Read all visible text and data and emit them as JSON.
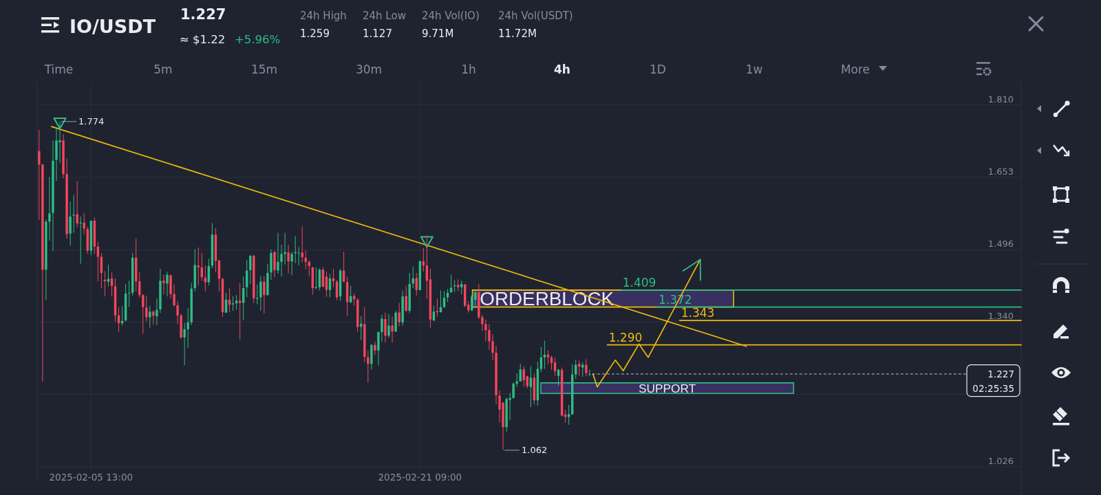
{
  "chart_data": {
    "type": "candlestick",
    "title": "IO/USDT",
    "subtitle": "1.227",
    "annotations": [
      "≈ $1.22",
      "+5.96%",
      "24h High",
      "1.259",
      "24h Low",
      "1.127",
      "24h Vol(IO)",
      "9.71M",
      "24h Vol(USDT)",
      "11.72M",
      "Time",
      "5m",
      "15m",
      "30m",
      "1h",
      "4h",
      "1D",
      "1w",
      "More",
      "02:25:35",
      {
        "text": "1.774",
        "x": "2025-02-04T01:00",
        "y": 1.774
      },
      {
        "text": "1.062",
        "x": "2025-02-25T09:00",
        "y": 1.062
      }
    ],
    "x": [
      "2025-02-03T01:00",
      "2025-02-03T05:00",
      "2025-02-03T09:00",
      "2025-02-03T13:00",
      "2025-02-03T17:00",
      "2025-02-03T21:00",
      "2025-02-04T01:00",
      "2025-02-04T05:00",
      "2025-02-04T09:00",
      "2025-02-04T13:00",
      "2025-02-04T17:00",
      "2025-02-04T21:00",
      "2025-02-05T01:00",
      "2025-02-05T05:00",
      "2025-02-05T09:00",
      "2025-02-05T13:00",
      "2025-02-05T17:00",
      "2025-02-05T21:00",
      "2025-02-06T01:00",
      "2025-02-06T05:00",
      "2025-02-06T09:00",
      "2025-02-06T13:00",
      "2025-02-06T17:00",
      "2025-02-06T21:00",
      "2025-02-07T01:00",
      "2025-02-07T05:00",
      "2025-02-07T09:00",
      "2025-02-07T13:00",
      "2025-02-07T17:00",
      "2025-02-07T21:00",
      "2025-02-08T01:00",
      "2025-02-08T05:00",
      "2025-02-08T09:00",
      "2025-02-08T13:00",
      "2025-02-08T17:00",
      "2025-02-08T21:00",
      "2025-02-09T01:00",
      "2025-02-09T05:00",
      "2025-02-09T09:00",
      "2025-02-09T13:00",
      "2025-02-09T17:00",
      "2025-02-09T21:00",
      "2025-02-10T01:00",
      "2025-02-10T05:00",
      "2025-02-10T09:00",
      "2025-02-10T13:00",
      "2025-02-10T17:00",
      "2025-02-10T21:00",
      "2025-02-11T01:00",
      "2025-02-11T05:00",
      "2025-02-11T09:00",
      "2025-02-11T13:00",
      "2025-02-11T17:00",
      "2025-02-11T21:00",
      "2025-02-12T01:00",
      "2025-02-12T05:00",
      "2025-02-12T09:00",
      "2025-02-12T13:00",
      "2025-02-12T17:00",
      "2025-02-12T21:00",
      "2025-02-13T01:00",
      "2025-02-13T05:00",
      "2025-02-13T09:00",
      "2025-02-13T13:00",
      "2025-02-13T17:00",
      "2025-02-13T21:00",
      "2025-02-14T01:00",
      "2025-02-14T05:00",
      "2025-02-14T09:00",
      "2025-02-14T13:00",
      "2025-02-14T17:00",
      "2025-02-14T21:00",
      "2025-02-15T01:00",
      "2025-02-15T05:00",
      "2025-02-15T09:00",
      "2025-02-15T13:00",
      "2025-02-15T17:00",
      "2025-02-15T21:00",
      "2025-02-16T01:00",
      "2025-02-16T05:00",
      "2025-02-16T09:00",
      "2025-02-16T13:00",
      "2025-02-16T17:00",
      "2025-02-16T21:00",
      "2025-02-17T01:00",
      "2025-02-17T05:00",
      "2025-02-17T09:00",
      "2025-02-17T13:00",
      "2025-02-17T17:00",
      "2025-02-17T21:00",
      "2025-02-18T01:00",
      "2025-02-18T05:00",
      "2025-02-18T09:00",
      "2025-02-18T13:00",
      "2025-02-18T17:00",
      "2025-02-18T21:00",
      "2025-02-19T01:00",
      "2025-02-19T05:00",
      "2025-02-19T09:00",
      "2025-02-19T13:00",
      "2025-02-19T17:00",
      "2025-02-19T21:00",
      "2025-02-20T01:00",
      "2025-02-20T05:00",
      "2025-02-20T09:00",
      "2025-02-20T13:00",
      "2025-02-20T17:00",
      "2025-02-20T21:00",
      "2025-02-21T01:00",
      "2025-02-21T05:00",
      "2025-02-21T09:00",
      "2025-02-21T13:00",
      "2025-02-21T17:00",
      "2025-02-21T21:00",
      "2025-02-22T01:00",
      "2025-02-22T05:00",
      "2025-02-22T09:00",
      "2025-02-22T13:00",
      "2025-02-22T17:00",
      "2025-02-22T21:00",
      "2025-02-23T01:00",
      "2025-02-23T05:00",
      "2025-02-23T09:00",
      "2025-02-23T13:00",
      "2025-02-23T17:00",
      "2025-02-23T21:00",
      "2025-02-24T01:00",
      "2025-02-24T05:00",
      "2025-02-24T09:00",
      "2025-02-24T13:00",
      "2025-02-24T17:00",
      "2025-02-24T21:00",
      "2025-02-25T01:00",
      "2025-02-25T05:00",
      "2025-02-25T09:00",
      "2025-02-25T13:00",
      "2025-02-25T17:00",
      "2025-02-25T21:00",
      "2025-02-26T01:00",
      "2025-02-26T05:00",
      "2025-02-26T09:00",
      "2025-02-26T13:00",
      "2025-02-26T17:00",
      "2025-02-26T21:00",
      "2025-02-27T01:00",
      "2025-02-27T05:00",
      "2025-02-27T09:00",
      "2025-02-27T13:00",
      "2025-02-27T17:00",
      "2025-02-27T21:00",
      "2025-02-28T01:00",
      "2025-02-28T05:00",
      "2025-02-28T09:00",
      "2025-02-28T13:00",
      "2025-02-28T17:00",
      "2025-02-28T21:00",
      "2025-03-01T01:00",
      "2025-03-01T05:00",
      "2025-03-01T09:00",
      "2025-03-01T13:00"
    ],
    "ohlc": [
      [
        1.71,
        1.756,
        1.561,
        1.681
      ],
      [
        1.681,
        1.682,
        1.211,
        1.453
      ],
      [
        1.453,
        1.562,
        1.387,
        1.557
      ],
      [
        1.557,
        1.654,
        1.516,
        1.575
      ],
      [
        1.576,
        1.733,
        1.493,
        1.689
      ],
      [
        1.691,
        1.762,
        1.645,
        1.733
      ],
      [
        1.729,
        1.774,
        1.684,
        1.733
      ],
      [
        1.733,
        1.747,
        1.651,
        1.66
      ],
      [
        1.66,
        1.694,
        1.52,
        1.53
      ],
      [
        1.531,
        1.6,
        1.505,
        1.568
      ],
      [
        1.57,
        1.615,
        1.533,
        1.572
      ],
      [
        1.573,
        1.645,
        1.545,
        1.553
      ],
      [
        1.553,
        1.568,
        1.466,
        1.555
      ],
      [
        1.555,
        1.575,
        1.53,
        1.542
      ],
      [
        1.541,
        1.546,
        1.487,
        1.494
      ],
      [
        1.494,
        1.559,
        1.484,
        1.559
      ],
      [
        1.559,
        1.566,
        1.487,
        1.503
      ],
      [
        1.503,
        1.514,
        1.428,
        1.481
      ],
      [
        1.481,
        1.489,
        1.413,
        1.446
      ],
      [
        1.431,
        1.45,
        1.396,
        1.428
      ],
      [
        1.427,
        1.464,
        1.417,
        1.433
      ],
      [
        1.434,
        1.447,
        1.395,
        1.418
      ],
      [
        1.417,
        1.434,
        1.34,
        1.354
      ],
      [
        1.354,
        1.372,
        1.318,
        1.337
      ],
      [
        1.337,
        1.374,
        1.332,
        1.342
      ],
      [
        1.343,
        1.422,
        1.341,
        1.401
      ],
      [
        1.402,
        1.429,
        1.372,
        1.403
      ],
      [
        1.403,
        1.489,
        1.397,
        1.479
      ],
      [
        1.479,
        1.52,
        1.406,
        1.428
      ],
      [
        1.428,
        1.447,
        1.393,
        1.398
      ],
      [
        1.398,
        1.4,
        1.314,
        1.372
      ],
      [
        1.371,
        1.396,
        1.341,
        1.35
      ],
      [
        1.35,
        1.375,
        1.327,
        1.362
      ],
      [
        1.362,
        1.365,
        1.334,
        1.353
      ],
      [
        1.352,
        1.391,
        1.333,
        1.366
      ],
      [
        1.367,
        1.455,
        1.359,
        1.429
      ],
      [
        1.429,
        1.442,
        1.399,
        1.424
      ],
      [
        1.423,
        1.448,
        1.395,
        1.442
      ],
      [
        1.441,
        1.442,
        1.391,
        1.4
      ],
      [
        1.4,
        1.421,
        1.373,
        1.376
      ],
      [
        1.376,
        1.385,
        1.335,
        1.354
      ],
      [
        1.354,
        1.357,
        1.304,
        1.306
      ],
      [
        1.306,
        1.338,
        1.246,
        1.324
      ],
      [
        1.324,
        1.37,
        1.284,
        1.339
      ],
      [
        1.339,
        1.424,
        1.333,
        1.412
      ],
      [
        1.413,
        1.497,
        1.406,
        1.463
      ],
      [
        1.462,
        1.501,
        1.419,
        1.458
      ],
      [
        1.458,
        1.489,
        1.429,
        1.437
      ],
      [
        1.436,
        1.462,
        1.406,
        1.426
      ],
      [
        1.426,
        1.477,
        1.419,
        1.461
      ],
      [
        1.462,
        1.554,
        1.456,
        1.529
      ],
      [
        1.529,
        1.543,
        1.447,
        1.472
      ],
      [
        1.473,
        1.474,
        1.406,
        1.433
      ],
      [
        1.433,
        1.436,
        1.351,
        1.361
      ],
      [
        1.36,
        1.403,
        1.359,
        1.388
      ],
      [
        1.388,
        1.413,
        1.361,
        1.377
      ],
      [
        1.378,
        1.396,
        1.364,
        1.38
      ],
      [
        1.38,
        1.398,
        1.366,
        1.386
      ],
      [
        1.386,
        1.424,
        1.302,
        1.381
      ],
      [
        1.381,
        1.438,
        1.344,
        1.413
      ],
      [
        1.415,
        1.474,
        1.393,
        1.451
      ],
      [
        1.452,
        1.485,
        1.422,
        1.483
      ],
      [
        1.483,
        1.486,
        1.381,
        1.391
      ],
      [
        1.39,
        1.421,
        1.378,
        1.392
      ],
      [
        1.393,
        1.439,
        1.364,
        1.427
      ],
      [
        1.427,
        1.439,
        1.358,
        1.398
      ],
      [
        1.398,
        1.466,
        1.397,
        1.446
      ],
      [
        1.447,
        1.497,
        1.431,
        1.489
      ],
      [
        1.491,
        1.494,
        1.437,
        1.452
      ],
      [
        1.451,
        1.533,
        1.444,
        1.47
      ],
      [
        1.47,
        1.507,
        1.438,
        1.487
      ],
      [
        1.487,
        1.533,
        1.464,
        1.491
      ],
      [
        1.49,
        1.507,
        1.445,
        1.471
      ],
      [
        1.471,
        1.492,
        1.441,
        1.487
      ],
      [
        1.489,
        1.526,
        1.467,
        1.491
      ],
      [
        1.489,
        1.502,
        1.462,
        1.49
      ],
      [
        1.49,
        1.547,
        1.469,
        1.48
      ],
      [
        1.479,
        1.495,
        1.454,
        1.47
      ],
      [
        1.47,
        1.473,
        1.439,
        1.461
      ],
      [
        1.458,
        1.459,
        1.399,
        1.413
      ],
      [
        1.413,
        1.458,
        1.411,
        1.415
      ],
      [
        1.415,
        1.456,
        1.408,
        1.453
      ],
      [
        1.453,
        1.458,
        1.415,
        1.416
      ],
      [
        1.438,
        1.449,
        1.394,
        1.409
      ],
      [
        1.409,
        1.444,
        1.393,
        1.434
      ],
      [
        1.434,
        1.455,
        1.415,
        1.428
      ],
      [
        1.427,
        1.431,
        1.387,
        1.393
      ],
      [
        1.395,
        1.455,
        1.385,
        1.451
      ],
      [
        1.451,
        1.492,
        1.426,
        1.427
      ],
      [
        1.426,
        1.438,
        1.353,
        1.383
      ],
      [
        1.382,
        1.418,
        1.381,
        1.396
      ],
      [
        1.396,
        1.401,
        1.375,
        1.389
      ],
      [
        1.388,
        1.391,
        1.318,
        1.329
      ],
      [
        1.329,
        1.352,
        1.301,
        1.336
      ],
      [
        1.335,
        1.372,
        1.253,
        1.264
      ],
      [
        1.263,
        1.278,
        1.208,
        1.249
      ],
      [
        1.249,
        1.292,
        1.236,
        1.29
      ],
      [
        1.29,
        1.297,
        1.268,
        1.278
      ],
      [
        1.278,
        1.319,
        1.246,
        1.318
      ],
      [
        1.318,
        1.355,
        1.297,
        1.347
      ],
      [
        1.346,
        1.36,
        1.295,
        1.31
      ],
      [
        1.31,
        1.357,
        1.305,
        1.332
      ],
      [
        1.332,
        1.352,
        1.295,
        1.319
      ],
      [
        1.319,
        1.364,
        1.318,
        1.36
      ],
      [
        1.36,
        1.381,
        1.33,
        1.339
      ],
      [
        1.339,
        1.408,
        1.332,
        1.395
      ],
      [
        1.396,
        1.418,
        1.362,
        1.364
      ],
      [
        1.364,
        1.446,
        1.359,
        1.422
      ],
      [
        1.423,
        1.459,
        1.413,
        1.434
      ],
      [
        1.435,
        1.446,
        1.397,
        1.409
      ],
      [
        1.409,
        1.473,
        1.408,
        1.471
      ],
      [
        1.471,
        1.5,
        1.449,
        1.462
      ],
      [
        1.462,
        1.527,
        1.39,
        1.429
      ],
      [
        1.432,
        1.455,
        1.327,
        1.345
      ],
      [
        1.343,
        1.375,
        1.342,
        1.362
      ],
      [
        1.363,
        1.39,
        1.351,
        1.361
      ],
      [
        1.361,
        1.408,
        1.36,
        1.372
      ],
      [
        1.372,
        1.407,
        1.37,
        1.392
      ],
      [
        1.393,
        1.411,
        1.383,
        1.403
      ],
      [
        1.404,
        1.442,
        1.403,
        1.414
      ],
      [
        1.417,
        1.43,
        1.405,
        1.419
      ],
      [
        1.42,
        1.432,
        1.407,
        1.415
      ],
      [
        1.415,
        1.429,
        1.4,
        1.422
      ],
      [
        1.421,
        1.422,
        1.372,
        1.375
      ],
      [
        1.377,
        1.385,
        1.36,
        1.365
      ],
      [
        1.365,
        1.4,
        1.363,
        1.395
      ],
      [
        1.388,
        1.409,
        1.37,
        1.404
      ],
      [
        1.404,
        1.422,
        1.346,
        1.35
      ],
      [
        1.35,
        1.355,
        1.32,
        1.335
      ],
      [
        1.335,
        1.345,
        1.298,
        1.322
      ],
      [
        1.322,
        1.335,
        1.279,
        1.298
      ],
      [
        1.298,
        1.313,
        1.257,
        1.273
      ],
      [
        1.273,
        1.288,
        1.161,
        1.181
      ],
      [
        1.18,
        1.191,
        1.122,
        1.15
      ],
      [
        1.165,
        1.166,
        1.062,
        1.112
      ],
      [
        1.112,
        1.176,
        1.102,
        1.173
      ],
      [
        1.171,
        1.186,
        1.127,
        1.175
      ],
      [
        1.175,
        1.209,
        1.174,
        1.206
      ],
      [
        1.206,
        1.228,
        1.199,
        1.211
      ],
      [
        1.211,
        1.249,
        1.211,
        1.237
      ],
      [
        1.237,
        1.243,
        1.2,
        1.214
      ],
      [
        1.222,
        1.223,
        1.196,
        1.201
      ],
      [
        1.199,
        1.244,
        1.155,
        1.219
      ],
      [
        1.219,
        1.228,
        1.161,
        1.17
      ],
      [
        1.17,
        1.254,
        1.158,
        1.238
      ],
      [
        1.238,
        1.285,
        1.231,
        1.263
      ],
      [
        1.263,
        1.299,
        1.238,
        1.269
      ],
      [
        1.269,
        1.279,
        1.248,
        1.263
      ],
      [
        1.263,
        1.267,
        1.236,
        1.251
      ],
      [
        1.252,
        1.262,
        1.223,
        1.233
      ],
      [
        1.223,
        1.238,
        1.201,
        1.236
      ],
      [
        1.236,
        1.241,
        1.135,
        1.137
      ],
      [
        1.139,
        1.149,
        1.122,
        1.134
      ],
      [
        1.134,
        1.16,
        1.117,
        1.14
      ],
      [
        1.14,
        1.248,
        1.138,
        1.226
      ],
      [
        1.226,
        1.258,
        1.216,
        1.247
      ],
      [
        1.249,
        1.256,
        1.223,
        1.243
      ],
      [
        1.241,
        1.252,
        1.221,
        1.247
      ],
      [
        1.247,
        1.259,
        1.222,
        1.229
      ],
      [
        1.226,
        1.236,
        1.222,
        1.227
      ]
    ],
    "xlim": [
      "2025-02-02T22:45",
      "2025-03-22T07:35"
    ],
    "ylim": [
      1.017,
      1.857
    ],
    "xticks": [
      {
        "value": "2025-02-05T13:00",
        "label": "2025-02-05 13:00"
      },
      {
        "value": "2025-02-21T09:00",
        "label": "2025-02-21 09:00"
      }
    ],
    "yticks": [
      {
        "value": 1.81,
        "label": "1.810"
      },
      1.653,
      1.496,
      {
        "value": 1.34,
        "label": "1.340"
      },
      {
        "value": 1.183,
        "label": null
      },
      1.026
    ],
    "grid": true,
    "series": [
      {
        "name": "ORDERBLOCK",
        "type": "line",
        "color": "#f0b90b",
        "x": [
          "2025-02-23T21:40",
          "2025-03-08T11:20"
        ],
        "values": [
          1.409,
          1.409
        ],
        "lower": [
          1.372,
          1.372
        ],
        "upper": [
          1.409,
          1.409
        ]
      },
      {
        "name": "SUPPORT",
        "type": "line",
        "color": "#2ebd85",
        "x": [
          "2025-02-27T04:40",
          "2025-03-11T08:40"
        ],
        "values": [
          1.208,
          1.208
        ],
        "lower": [
          1.185,
          1.185
        ],
        "upper": [
          1.208,
          1.208
        ]
      },
      {
        "type": "line",
        "color": "#f0b90b",
        "x": [
          "2025-02-03T15:30",
          "2025-03-09T02:10"
        ],
        "values": [
          1.763,
          1.287
        ]
      },
      {
        "name": "1.409",
        "type": "line",
        "color": "#2ebd85",
        "x": [
          "2025-03-03T01:30",
          "2025-03-22T07:35"
        ],
        "values": [
          1.409,
          1.409
        ]
      },
      {
        "name": "1.372",
        "type": "line",
        "color": "#2ebd85",
        "x": [
          "2025-03-04T19:00",
          "2025-03-22T07:35"
        ],
        "values": [
          1.372,
          1.372
        ]
      },
      {
        "name": "1.343",
        "type": "line",
        "color": "#f0b90b",
        "x": [
          "2025-03-05T21:00",
          "2025-03-22T07:35"
        ],
        "values": [
          1.343,
          1.343
        ]
      },
      {
        "name": "1.290",
        "type": "line",
        "color": "#f0b90b",
        "x": [
          "2025-03-02T09:30",
          "2025-03-22T07:35"
        ],
        "values": [
          1.29,
          1.29
        ]
      },
      {
        "type": "line",
        "color": "#f0b90b",
        "x": [
          "2025-03-01T16:50",
          "2025-03-01T21:50",
          "2025-03-02T18:40",
          "2025-03-03T03:50",
          "2025-03-03T22:00",
          "2025-03-04T08:40",
          "2025-03-06T20:50"
        ],
        "values": [
          1.227,
          1.199,
          1.257,
          1.234,
          1.292,
          1.263,
          1.475
        ]
      },
      {
        "type": "scatter",
        "marker": "triangle",
        "color": "#2ebd85",
        "x": [
          "2025-02-04T01:00",
          "2025-02-21T17:00"
        ],
        "values": [
          1.77,
          1.513
        ]
      }
    ],
    "ref_lines": [
      {
        "axis": "y",
        "value": 1.227,
        "label": "1.227",
        "line_style": "dashed",
        "color": "#b7bdc6"
      }
    ]
  }
}
